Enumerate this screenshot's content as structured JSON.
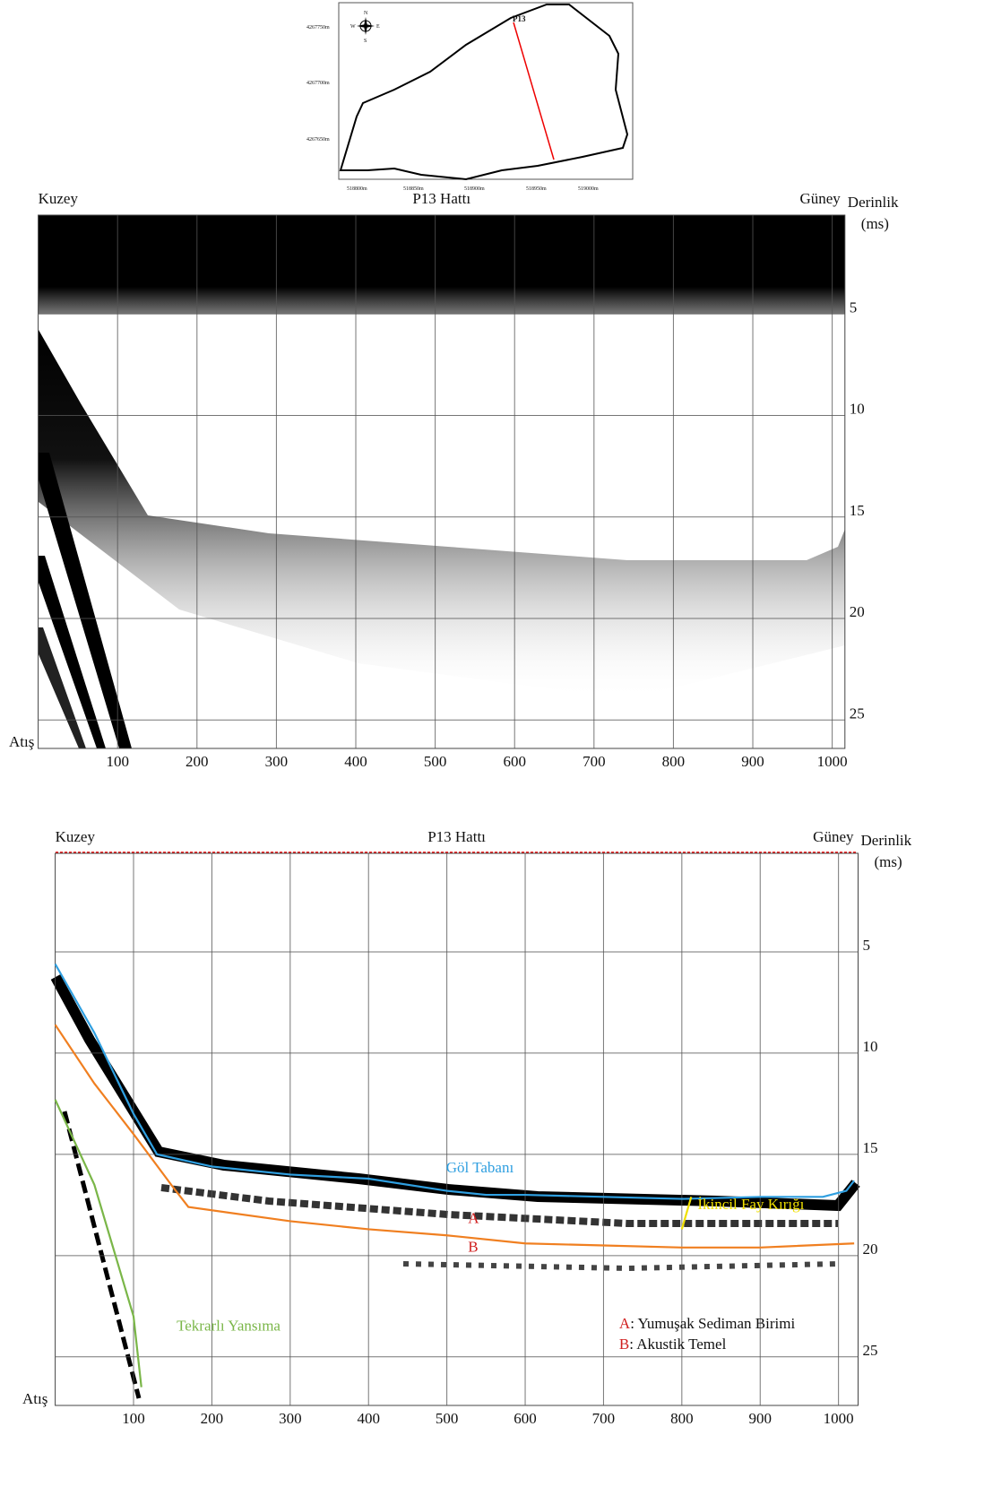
{
  "map": {
    "label": "P13",
    "compass": [
      "N",
      "E",
      "S",
      "W"
    ],
    "yticks": [
      "4267750m",
      "4267700m",
      "4267650m"
    ],
    "xticks": [
      "518800m",
      "518850m",
      "518900m",
      "518950m",
      "519000m"
    ]
  },
  "chart_data": [
    {
      "type": "seismic",
      "title": "P13 Hattı",
      "left_label": "Kuzey",
      "right_label": "Güney",
      "y_label": [
        "Derinlik",
        "(ms)"
      ],
      "x_label": "Atış",
      "inverted_y": true,
      "xlim": [
        0,
        1016
      ],
      "ylim": [
        0,
        26.4
      ],
      "xticks": [
        100,
        200,
        300,
        400,
        500,
        600,
        700,
        800,
        900,
        1000
      ],
      "yticks": [
        5,
        10,
        15,
        20,
        25
      ],
      "grid": true
    },
    {
      "type": "seismic",
      "title": "P13 Hattı",
      "left_label": "Kuzey",
      "right_label": "Güney",
      "y_label": [
        "Derinlik",
        "(ms)"
      ],
      "x_label": "Atış",
      "inverted_y": true,
      "xlim": [
        0,
        1025
      ],
      "ylim": [
        0,
        27.4
      ],
      "xticks": [
        100,
        200,
        300,
        400,
        500,
        600,
        700,
        800,
        900,
        1000
      ],
      "yticks": [
        5,
        10,
        15,
        20,
        25
      ],
      "grid": true,
      "series": [
        {
          "name": "Göl Tabanı",
          "color": "#2f9fe0",
          "x": [
            0,
            50,
            100,
            130,
            200,
            300,
            400,
            500,
            550,
            600,
            700,
            800,
            900,
            980,
            1010,
            1020
          ],
          "values": [
            5.6,
            9,
            13,
            15,
            15.6,
            16,
            16.2,
            16.8,
            17,
            17,
            17.1,
            17.2,
            17.1,
            17.1,
            16.8,
            16.3
          ]
        },
        {
          "name": "B",
          "color": "#f07f20",
          "x": [
            0,
            50,
            100,
            150,
            170,
            300,
            400,
            500,
            600,
            700,
            800,
            900,
            1020
          ],
          "values": [
            8.6,
            11.5,
            14,
            16.6,
            17.6,
            18.3,
            18.7,
            19.0,
            19.4,
            19.5,
            19.6,
            19.6,
            19.4
          ]
        },
        {
          "name": "Tekrarlı Yansıma",
          "color": "#7ab648",
          "x": [
            0,
            50,
            100,
            110
          ],
          "values": [
            12.3,
            16.5,
            23,
            26.5
          ]
        },
        {
          "name": "İkincil Fay Kırığı",
          "color": "#f0e000",
          "x": [
            812,
            800
          ],
          "values": [
            17.1,
            18.7
          ]
        }
      ],
      "annotations": [
        "A"
      ],
      "legend": [
        {
          "key": "A",
          "text": ": Yumuşak Sediman Birimi"
        },
        {
          "key": "B",
          "text": ": Akustik Temel"
        }
      ]
    }
  ]
}
